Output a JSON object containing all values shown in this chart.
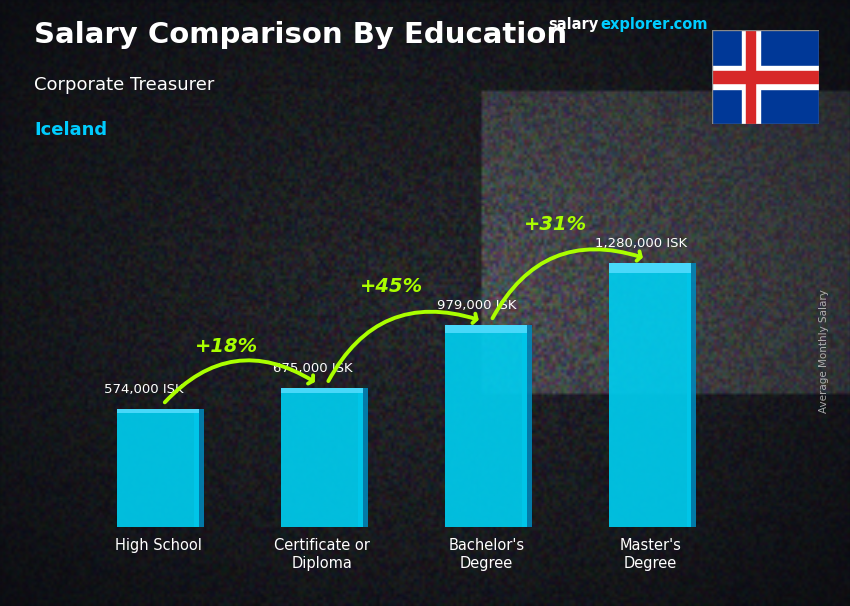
{
  "title": "Salary Comparison By Education",
  "subtitle": "Corporate Treasurer",
  "country": "Iceland",
  "ylabel": "Average Monthly Salary",
  "categories": [
    "High School",
    "Certificate or\nDiploma",
    "Bachelor's\nDegree",
    "Master's\nDegree"
  ],
  "values": [
    574000,
    675000,
    979000,
    1280000
  ],
  "value_labels": [
    "574,000 ISK",
    "675,000 ISK",
    "979,000 ISK",
    "1,280,000 ISK"
  ],
  "pct_labels": [
    "+18%",
    "+45%",
    "+31%"
  ],
  "bar_color_face": "#00ccee",
  "bar_color_side": "#0088bb",
  "bar_color_top": "#55ddff",
  "background_dark": "#1a1c24",
  "title_color": "#ffffff",
  "subtitle_color": "#ffffff",
  "country_color": "#00ccff",
  "value_label_color": "#ffffff",
  "pct_color": "#aaff00",
  "arrow_color": "#aaff00",
  "ylabel_color": "#cccccc",
  "ylim": [
    0,
    1700000
  ],
  "bar_width": 0.5,
  "pct_configs": [
    [
      0.0,
      574000,
      1.0,
      675000,
      "+18%",
      0.42,
      830000
    ],
    [
      1.0,
      675000,
      2.0,
      979000,
      "+45%",
      1.42,
      1120000
    ],
    [
      2.0,
      979000,
      3.0,
      1280000,
      "+31%",
      2.42,
      1420000
    ]
  ]
}
